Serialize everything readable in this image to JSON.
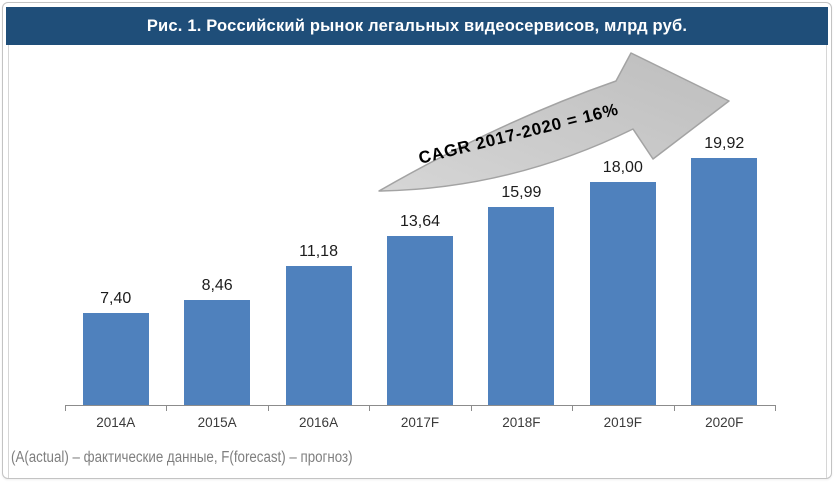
{
  "title": "Рис. 1. Российский рынок легальных видеосервисов, млрд руб.",
  "annotation": "CAGR 2017-2020 = 16%",
  "footnote": "(A(actual) – фактические данные, F(forecast) – прогноз)",
  "colors": {
    "title_bg": "#1f4e79",
    "title_text": "#ffffff",
    "bar": "#4f81bd",
    "arrow_fill": "#c3c3c3",
    "arrow_stroke": "#a3a3a3",
    "axis": "#8c8c8c",
    "footnote_text": "#7f7f7f"
  },
  "chart_data": {
    "type": "bar",
    "title": "Рис. 1. Российский рынок легальных видеосервисов, млрд руб.",
    "categories": [
      "2014A",
      "2015A",
      "2016A",
      "2017F",
      "2018F",
      "2019F",
      "2020F"
    ],
    "values": [
      7.4,
      8.46,
      11.18,
      13.64,
      15.99,
      18.0,
      19.92
    ],
    "value_labels": [
      "7,40",
      "8,46",
      "11,18",
      "13,64",
      "15,99",
      "18,00",
      "19,92"
    ],
    "unit": "млрд руб.",
    "ylim": [
      0,
      20
    ],
    "grid": false,
    "legend": false,
    "annotation": "CAGR 2017-2020 = 16%",
    "bar_color": "#4f81bd"
  }
}
